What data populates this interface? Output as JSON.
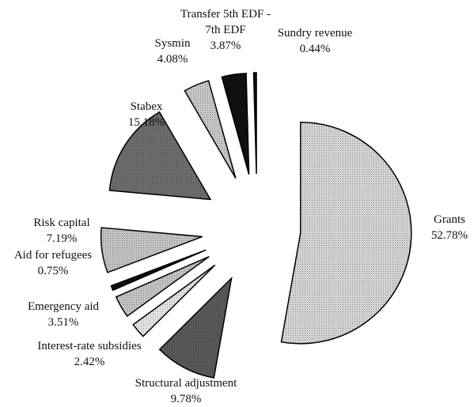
{
  "chart_data": {
    "type": "pie",
    "categories": [
      "Grants",
      "Structural adjustment",
      "Interest-rate subsidies",
      "Emergency aid",
      "Aid for refugees",
      "Risk capital",
      "Stabex",
      "Sysmin",
      "Transfer 5th EDF - 7th EDF",
      "Sundry revenue"
    ],
    "values": [
      52.78,
      9.78,
      2.42,
      3.51,
      0.75,
      7.19,
      15.18,
      4.08,
      3.87,
      0.44
    ],
    "value_labels": [
      "52.78%",
      "9.78%",
      "2.42%",
      "3.51%",
      "0.75%",
      "7.19%",
      "15.18%",
      "4.08%",
      "3.87%",
      "0.44%"
    ],
    "colors": [
      "#d4d4d4",
      "#5a5a5a",
      "#e4e4e4",
      "#c4c4c4",
      "#111111",
      "#c4c4c4",
      "#6e6e6e",
      "#c8c8c8",
      "#111111",
      "#111111"
    ]
  }
}
